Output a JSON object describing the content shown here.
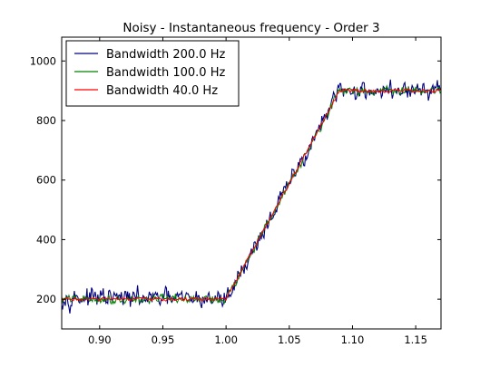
{
  "chart_data": {
    "type": "line",
    "title": "Noisy - Instantaneous frequency - Order 3",
    "xlabel": "",
    "ylabel": "",
    "xlim": [
      0.87,
      1.17
    ],
    "ylim": [
      100,
      1080
    ],
    "xticks": [
      0.9,
      0.95,
      1.0,
      1.05,
      1.1,
      1.15
    ],
    "xtick_labels": [
      "0.90",
      "0.95",
      "1.00",
      "1.05",
      "1.10",
      "1.15"
    ],
    "yticks": [
      200,
      400,
      600,
      800,
      1000
    ],
    "ytick_labels": [
      "200",
      "400",
      "600",
      "800",
      "1000"
    ],
    "grid": false,
    "legend_position": "top-left",
    "series": [
      {
        "name": "Bandwidth 200.0 Hz",
        "color": "#000080",
        "noise_amplitude": 22,
        "points": [
          [
            0.87,
            205
          ],
          [
            1.0,
            200
          ],
          [
            1.09,
            900
          ],
          [
            1.17,
            900
          ]
        ]
      },
      {
        "name": "Bandwidth 100.0 Hz",
        "color": "#008000",
        "noise_amplitude": 10,
        "points": [
          [
            0.87,
            200
          ],
          [
            1.0,
            200
          ],
          [
            1.09,
            900
          ],
          [
            1.17,
            900
          ]
        ]
      },
      {
        "name": "Bandwidth 40.0 Hz",
        "color": "#ff0000",
        "noise_amplitude": 4,
        "points": [
          [
            0.87,
            200
          ],
          [
            1.0,
            200
          ],
          [
            1.09,
            900
          ],
          [
            1.17,
            900
          ]
        ]
      }
    ]
  }
}
